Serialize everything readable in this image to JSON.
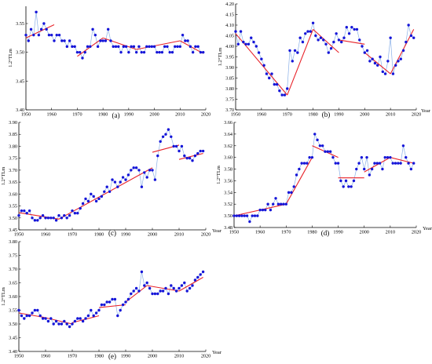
{
  "chart_data": [
    {
      "type": "scatter",
      "panel_label": "(a)",
      "ylabel": "1.2°TLm",
      "xlabel": "",
      "xlim": [
        1950,
        2020
      ],
      "ylim": [
        3.4,
        3.58
      ],
      "xticks": [
        1950,
        1960,
        1970,
        1980,
        1990,
        2000,
        2010,
        2020
      ],
      "yticks": [
        3.4,
        3.45,
        3.5,
        3.55
      ],
      "series": [
        {
          "x": [
            1950,
            1951,
            1952,
            1953,
            1954,
            1955,
            1956,
            1957,
            1958,
            1959,
            1960,
            1961,
            1962,
            1963,
            1964,
            1965,
            1966,
            1967,
            1968,
            1969,
            1970,
            1971,
            1972,
            1973,
            1974,
            1975,
            1976,
            1977,
            1978,
            1979,
            1980,
            1981,
            1982,
            1983,
            1984,
            1985,
            1986,
            1987,
            1988,
            1989,
            1990,
            1991,
            1992,
            1993,
            1994,
            1995,
            1996,
            1997,
            1998,
            1999,
            2000,
            2001,
            2002,
            2003,
            2004,
            2005,
            2006,
            2007,
            2008,
            2009,
            2010,
            2011,
            2012,
            2013,
            2014,
            2015,
            2016,
            2017,
            2018,
            2019
          ],
          "y": [
            3.53,
            3.52,
            3.54,
            3.53,
            3.57,
            3.53,
            3.54,
            3.55,
            3.54,
            3.53,
            3.53,
            3.52,
            3.53,
            3.53,
            3.52,
            3.52,
            3.51,
            3.52,
            3.51,
            3.51,
            3.5,
            3.5,
            3.49,
            3.5,
            3.51,
            3.51,
            3.54,
            3.53,
            3.51,
            3.52,
            3.52,
            3.52,
            3.54,
            3.52,
            3.51,
            3.51,
            3.51,
            3.5,
            3.51,
            3.51,
            3.5,
            3.51,
            3.51,
            3.5,
            3.51,
            3.5,
            3.5,
            3.51,
            3.51,
            3.51,
            3.51,
            3.5,
            3.5,
            3.5,
            3.51,
            3.51,
            3.5,
            3.5,
            3.51,
            3.51,
            3.51,
            3.53,
            3.52,
            3.52,
            3.51,
            3.5,
            3.51,
            3.51,
            3.5,
            3.5
          ]
        }
      ],
      "trends": [
        {
          "x": [
            1950,
            1961
          ],
          "y": [
            3.525,
            3.548
          ]
        },
        {
          "x": [
            1970,
            1980
          ],
          "y": [
            3.493,
            3.525
          ]
        },
        {
          "x": [
            1980,
            1993
          ],
          "y": [
            3.525,
            3.505
          ]
        },
        {
          "x": [
            1993,
            2010
          ],
          "y": [
            3.505,
            3.52
          ]
        },
        {
          "x": [
            2010,
            2019
          ],
          "y": [
            3.52,
            3.498
          ]
        }
      ]
    },
    {
      "type": "scatter",
      "panel_label": "(b)",
      "ylabel": "1.2°TLm",
      "xlabel": "Year",
      "xlim": [
        1950,
        2020
      ],
      "ylim": [
        3.7,
        4.2
      ],
      "xticks": [
        1950,
        1960,
        1970,
        1980,
        1990,
        2000,
        2010,
        2020
      ],
      "yticks": [
        3.7,
        3.75,
        3.8,
        3.85,
        3.9,
        3.95,
        4.0,
        4.05,
        4.1,
        4.15,
        4.2
      ],
      "series": [
        {
          "x": [
            1950,
            1951,
            1952,
            1953,
            1954,
            1955,
            1956,
            1957,
            1958,
            1959,
            1960,
            1961,
            1962,
            1963,
            1964,
            1965,
            1966,
            1967,
            1968,
            1969,
            1970,
            1971,
            1972,
            1973,
            1974,
            1975,
            1976,
            1977,
            1978,
            1979,
            1980,
            1981,
            1982,
            1983,
            1984,
            1985,
            1986,
            1987,
            1988,
            1989,
            1990,
            1991,
            1992,
            1993,
            1994,
            1995,
            1996,
            1997,
            1998,
            1999,
            2000,
            2001,
            2002,
            2003,
            2004,
            2005,
            2006,
            2007,
            2008,
            2009,
            2010,
            2011,
            2012,
            2013,
            2014,
            2015,
            2016,
            2017,
            2018,
            2019
          ],
          "y": [
            4.07,
            4.01,
            4.07,
            4.02,
            4.01,
            4.01,
            4.04,
            4.02,
            4.0,
            3.97,
            3.94,
            3.91,
            3.87,
            3.85,
            3.87,
            3.82,
            3.82,
            3.79,
            3.77,
            3.77,
            3.8,
            3.98,
            3.93,
            3.98,
            3.97,
            4.04,
            4.02,
            4.06,
            4.07,
            4.07,
            4.11,
            4.05,
            4.03,
            4.04,
            4.03,
            4.01,
            3.97,
            3.99,
            4.02,
            4.06,
            4.03,
            4.02,
            4.04,
            4.09,
            4.06,
            4.09,
            4.08,
            4.08,
            4.03,
            4.0,
            3.97,
            3.98,
            3.93,
            3.94,
            3.92,
            3.91,
            3.95,
            3.88,
            3.87,
            3.93,
            4.04,
            3.87,
            3.91,
            3.93,
            3.94,
            3.98,
            4.02,
            4.1,
            4.05,
            4.04
          ]
        }
      ],
      "trends": [
        {
          "x": [
            1950,
            1970
          ],
          "y": [
            4.06,
            3.77
          ]
        },
        {
          "x": [
            1970,
            1980
          ],
          "y": [
            3.77,
            4.08
          ]
        },
        {
          "x": [
            1980,
            1990
          ],
          "y": [
            4.08,
            3.97
          ]
        },
        {
          "x": [
            1990,
            2000
          ],
          "y": [
            4.03,
            4.01
          ]
        },
        {
          "x": [
            2000,
            2010
          ],
          "y": [
            3.97,
            3.87
          ]
        },
        {
          "x": [
            2010,
            2019
          ],
          "y": [
            3.87,
            4.08
          ]
        }
      ]
    },
    {
      "type": "scatter",
      "panel_label": "(c)",
      "ylabel": "1.2°TLm",
      "xlabel": "Year",
      "xlim": [
        1950,
        2020
      ],
      "ylim": [
        3.45,
        3.9
      ],
      "xticks": [
        1950,
        1960,
        1970,
        1980,
        1990,
        2000,
        2010,
        2020
      ],
      "yticks": [
        3.45,
        3.5,
        3.55,
        3.6,
        3.65,
        3.7,
        3.75,
        3.8,
        3.85,
        3.9
      ],
      "series": [
        {
          "x": [
            1950,
            1951,
            1952,
            1953,
            1954,
            1955,
            1956,
            1957,
            1958,
            1959,
            1960,
            1961,
            1962,
            1963,
            1964,
            1965,
            1966,
            1967,
            1968,
            1969,
            1970,
            1971,
            1972,
            1973,
            1974,
            1975,
            1976,
            1977,
            1978,
            1979,
            1980,
            1981,
            1982,
            1983,
            1984,
            1985,
            1986,
            1987,
            1988,
            1989,
            1990,
            1991,
            1992,
            1993,
            1994,
            1995,
            1996,
            1997,
            1998,
            1999,
            2000,
            2001,
            2002,
            2003,
            2004,
            2005,
            2006,
            2007,
            2008,
            2009,
            2010,
            2011,
            2012,
            2013,
            2014,
            2015,
            2016,
            2017,
            2018,
            2019
          ],
          "y": [
            3.51,
            3.53,
            3.53,
            3.52,
            3.53,
            3.5,
            3.49,
            3.49,
            3.5,
            3.51,
            3.5,
            3.5,
            3.5,
            3.5,
            3.49,
            3.51,
            3.5,
            3.51,
            3.5,
            3.51,
            3.53,
            3.52,
            3.52,
            3.54,
            3.56,
            3.58,
            3.57,
            3.6,
            3.59,
            3.57,
            3.58,
            3.59,
            3.61,
            3.63,
            3.61,
            3.66,
            3.65,
            3.63,
            3.65,
            3.67,
            3.66,
            3.68,
            3.7,
            3.71,
            3.71,
            3.7,
            3.63,
            3.69,
            3.67,
            3.7,
            3.7,
            3.66,
            3.76,
            3.82,
            3.84,
            3.85,
            3.87,
            3.84,
            3.8,
            3.8,
            3.78,
            3.8,
            3.76,
            3.75,
            3.75,
            3.74,
            3.76,
            3.77,
            3.78,
            3.78
          ]
        }
      ],
      "trends": [
        {
          "x": [
            1950,
            1965
          ],
          "y": [
            3.522,
            3.495
          ]
        },
        {
          "x": [
            1965,
            2000
          ],
          "y": [
            3.495,
            3.71
          ]
        },
        {
          "x": [
            2000,
            2010
          ],
          "y": [
            3.775,
            3.805
          ]
        },
        {
          "x": [
            2010,
            2019
          ],
          "y": [
            3.745,
            3.77
          ]
        }
      ]
    },
    {
      "type": "scatter",
      "panel_label": "(d)",
      "ylabel": "1.2°TLm",
      "xlabel": "Year",
      "xlim": [
        1950,
        2020
      ],
      "ylim": [
        3.48,
        3.66
      ],
      "xticks": [
        1950,
        1960,
        1970,
        1980,
        1990,
        2000,
        2010,
        2020
      ],
      "yticks": [
        3.48,
        3.5,
        3.52,
        3.54,
        3.56,
        3.58,
        3.6,
        3.62,
        3.64,
        3.66
      ],
      "series": [
        {
          "x": [
            1950,
            1951,
            1952,
            1953,
            1954,
            1955,
            1956,
            1957,
            1958,
            1959,
            1960,
            1961,
            1962,
            1963,
            1964,
            1965,
            1966,
            1967,
            1968,
            1969,
            1970,
            1971,
            1972,
            1973,
            1974,
            1975,
            1976,
            1977,
            1978,
            1979,
            1980,
            1981,
            1982,
            1983,
            1984,
            1985,
            1986,
            1987,
            1988,
            1989,
            1990,
            1991,
            1992,
            1993,
            1994,
            1995,
            1996,
            1997,
            1998,
            1999,
            2000,
            2001,
            2002,
            2003,
            2004,
            2005,
            2006,
            2007,
            2008,
            2009,
            2010,
            2011,
            2012,
            2013,
            2014,
            2015,
            2016,
            2017,
            2018,
            2019
          ],
          "y": [
            3.5,
            3.5,
            3.5,
            3.5,
            3.5,
            3.5,
            3.49,
            3.5,
            3.5,
            3.5,
            3.51,
            3.51,
            3.51,
            3.52,
            3.51,
            3.52,
            3.53,
            3.52,
            3.52,
            3.52,
            3.52,
            3.54,
            3.54,
            3.55,
            3.57,
            3.58,
            3.59,
            3.59,
            3.59,
            3.6,
            3.6,
            3.64,
            3.63,
            3.62,
            3.62,
            3.61,
            3.61,
            3.61,
            3.6,
            3.59,
            3.59,
            3.56,
            3.55,
            3.56,
            3.55,
            3.55,
            3.56,
            3.58,
            3.59,
            3.6,
            3.58,
            3.6,
            3.57,
            3.58,
            3.59,
            3.59,
            3.59,
            3.58,
            3.6,
            3.6,
            3.6,
            3.59,
            3.59,
            3.59,
            3.59,
            3.62,
            3.6,
            3.59,
            3.58,
            3.59
          ]
        }
      ],
      "trends": [
        {
          "x": [
            1950,
            1970
          ],
          "y": [
            3.5,
            3.52
          ]
        },
        {
          "x": [
            1970,
            1980
          ],
          "y": [
            3.52,
            3.6
          ]
        },
        {
          "x": [
            1980,
            1990
          ],
          "y": [
            3.62,
            3.6
          ]
        },
        {
          "x": [
            1990,
            2000
          ],
          "y": [
            3.565,
            3.565
          ]
        },
        {
          "x": [
            2000,
            2010
          ],
          "y": [
            3.575,
            3.6
          ]
        },
        {
          "x": [
            2010,
            2019
          ],
          "y": [
            3.6,
            3.59
          ]
        }
      ]
    },
    {
      "type": "scatter",
      "panel_label": "(e)",
      "ylabel": "1.2°TLm",
      "xlabel": "Year",
      "xlim": [
        1950,
        2020
      ],
      "ylim": [
        3.4,
        3.8
      ],
      "xticks": [
        1950,
        1960,
        1970,
        1980,
        1990,
        2000,
        2010,
        2020
      ],
      "yticks": [
        3.4,
        3.45,
        3.5,
        3.55,
        3.6,
        3.65,
        3.7,
        3.75,
        3.8
      ],
      "series": [
        {
          "x": [
            1950,
            1951,
            1952,
            1953,
            1954,
            1955,
            1956,
            1957,
            1958,
            1959,
            1960,
            1961,
            1962,
            1963,
            1964,
            1965,
            1966,
            1967,
            1968,
            1969,
            1970,
            1971,
            1972,
            1973,
            1974,
            1975,
            1976,
            1977,
            1978,
            1979,
            1980,
            1981,
            1982,
            1983,
            1984,
            1985,
            1986,
            1987,
            1988,
            1989,
            1990,
            1991,
            1992,
            1993,
            1994,
            1995,
            1996,
            1997,
            1998,
            1999,
            2000,
            2001,
            2002,
            2003,
            2004,
            2005,
            2006,
            2007,
            2008,
            2009,
            2010,
            2011,
            2012,
            2013,
            2014,
            2015,
            2016,
            2017,
            2018,
            2019
          ],
          "y": [
            3.55,
            3.53,
            3.52,
            3.53,
            3.53,
            3.54,
            3.55,
            3.55,
            3.53,
            3.52,
            3.52,
            3.51,
            3.52,
            3.5,
            3.51,
            3.5,
            3.5,
            3.51,
            3.5,
            3.49,
            3.5,
            3.51,
            3.52,
            3.52,
            3.51,
            3.52,
            3.53,
            3.55,
            3.53,
            3.54,
            3.55,
            3.57,
            3.57,
            3.58,
            3.58,
            3.59,
            3.59,
            3.53,
            3.55,
            3.57,
            3.58,
            3.59,
            3.61,
            3.62,
            3.63,
            3.62,
            3.69,
            3.64,
            3.65,
            3.63,
            3.61,
            3.61,
            3.61,
            3.62,
            3.62,
            3.63,
            3.61,
            3.64,
            3.63,
            3.62,
            3.63,
            3.64,
            3.65,
            3.62,
            3.63,
            3.64,
            3.66,
            3.67,
            3.68,
            3.69
          ]
        }
      ],
      "trends": [
        {
          "x": [
            1950,
            1959
          ],
          "y": [
            3.54,
            3.525
          ]
        },
        {
          "x": [
            1959,
            1970
          ],
          "y": [
            3.525,
            3.5
          ]
        },
        {
          "x": [
            1970,
            1980
          ],
          "y": [
            3.505,
            3.53
          ]
        },
        {
          "x": [
            1980,
            1990
          ],
          "y": [
            3.56,
            3.57
          ]
        },
        {
          "x": [
            1990,
            1998
          ],
          "y": [
            3.58,
            3.64
          ]
        },
        {
          "x": [
            1998,
            2010
          ],
          "y": [
            3.64,
            3.62
          ]
        },
        {
          "x": [
            2010,
            2019
          ],
          "y": [
            3.62,
            3.67
          ]
        }
      ]
    }
  ]
}
